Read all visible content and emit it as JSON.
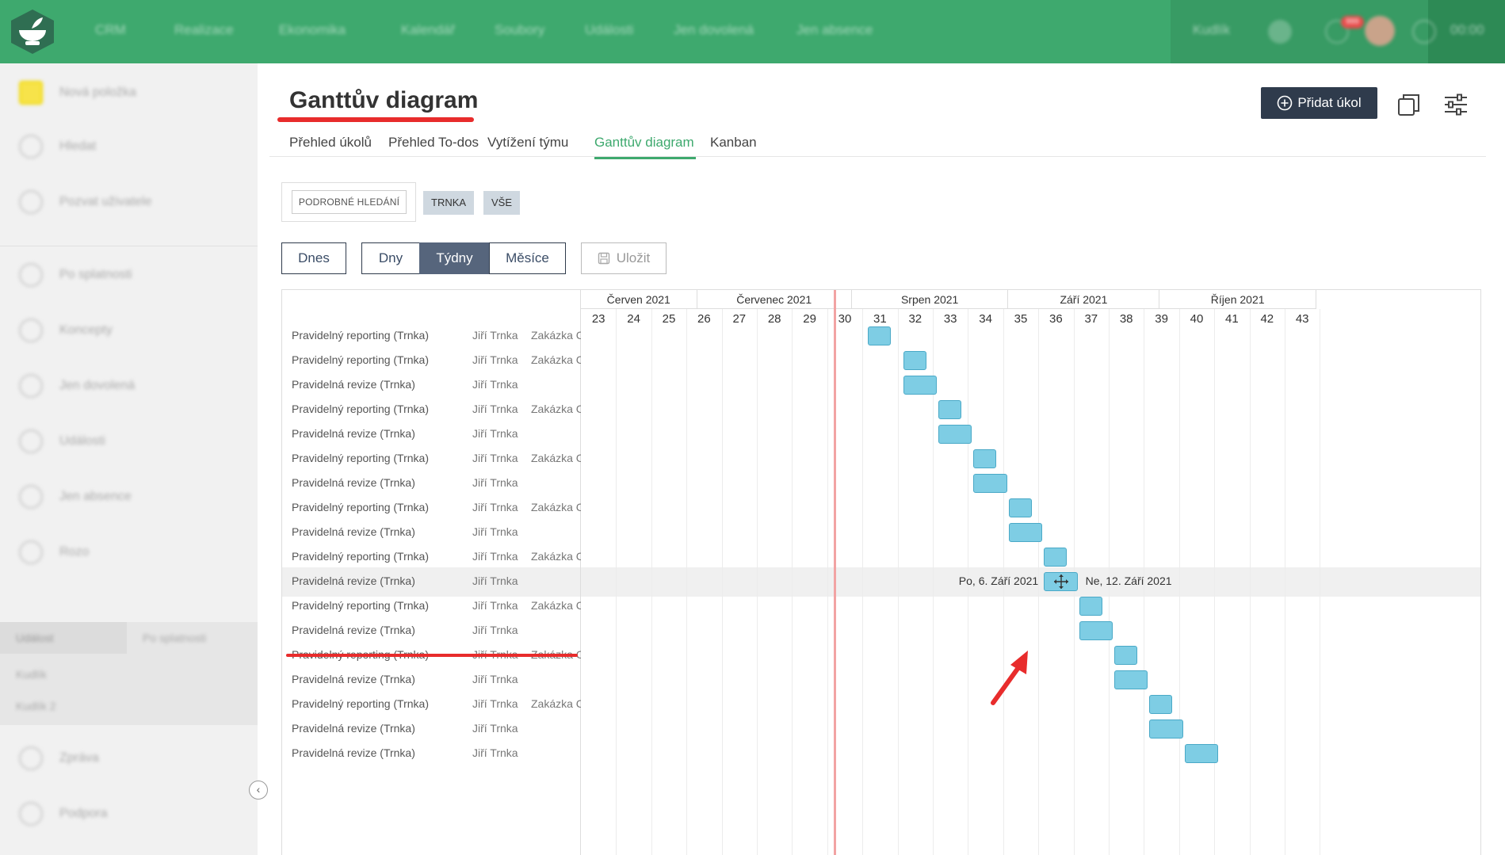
{
  "topbar": {
    "nav": [
      "CRM",
      "Realizace",
      "Ekonomika",
      "Kalendář",
      "Soubory",
      "Události",
      "Jen dovolená",
      "Jen absence"
    ],
    "user": "Kudlík",
    "badge": "999",
    "time": "00:00",
    "accent": "#3ea96e"
  },
  "sidebar": {
    "items": [
      "Nová položka",
      "Hledat",
      "Pozvat uživatele",
      "Po splatnosti",
      "Koncepty",
      "Jen dovolená",
      "Události",
      "Jen absence",
      "Rozo"
    ],
    "tabs": [
      "Událost",
      "Po splatnosti"
    ],
    "list": [
      "Kudlík",
      "Kudlík 2"
    ],
    "bottom": [
      "Zpráva",
      "Podpora"
    ]
  },
  "header": {
    "title": "Ganttův diagram",
    "add_button": "Přidat úkol"
  },
  "tabs": [
    "Přehled úkolů",
    "Přehled To-dos",
    "Vytížení týmu",
    "Ganttův diagram",
    "Kanban"
  ],
  "filters": {
    "advanced": "PODROBNÉ HLEDÁNÍ",
    "tags": [
      "TRNKA",
      "VŠE"
    ]
  },
  "view": {
    "today": "Dnes",
    "modes": [
      "Dny",
      "Týdny",
      "Měsíce"
    ],
    "active_mode": "Týdny",
    "save": "Uložit"
  },
  "gantt": {
    "months": [
      "Červen 2021",
      "Červenec 2021",
      "Srpen 2021",
      "Září 2021",
      "Říjen 2021"
    ],
    "weeks": [
      "23",
      "24",
      "25",
      "26",
      "27",
      "28",
      "29",
      "30",
      "31",
      "32",
      "33",
      "34",
      "35",
      "36",
      "37",
      "38",
      "39",
      "40",
      "41",
      "42",
      "43"
    ],
    "rows": [
      {
        "name": "Pravidelný reporting (Trnka)",
        "user": "Jiří Trnka",
        "project": "Zakázka C"
      },
      {
        "name": "Pravidelný reporting (Trnka)",
        "user": "Jiří Trnka",
        "project": "Zakázka C"
      },
      {
        "name": "Pravidelná revize (Trnka)",
        "user": "Jiří Trnka",
        "project": ""
      },
      {
        "name": "Pravidelný reporting (Trnka)",
        "user": "Jiří Trnka",
        "project": "Zakázka C"
      },
      {
        "name": "Pravidelná revize (Trnka)",
        "user": "Jiří Trnka",
        "project": ""
      },
      {
        "name": "Pravidelný reporting (Trnka)",
        "user": "Jiří Trnka",
        "project": "Zakázka C"
      },
      {
        "name": "Pravidelná revize (Trnka)",
        "user": "Jiří Trnka",
        "project": ""
      },
      {
        "name": "Pravidelný reporting (Trnka)",
        "user": "Jiří Trnka",
        "project": "Zakázka C"
      },
      {
        "name": "Pravidelná revize (Trnka)",
        "user": "Jiří Trnka",
        "project": ""
      },
      {
        "name": "Pravidelný reporting (Trnka)",
        "user": "Jiří Trnka",
        "project": "Zakázka C"
      },
      {
        "name": "Pravidelná revize (Trnka)",
        "user": "Jiří Trnka",
        "project": ""
      },
      {
        "name": "Pravidelný reporting (Trnka)",
        "user": "Jiří Trnka",
        "project": "Zakázka C"
      },
      {
        "name": "Pravidelná revize (Trnka)",
        "user": "Jiří Trnka",
        "project": ""
      },
      {
        "name": "Pravidelný reporting (Trnka)",
        "user": "Jiří Trnka",
        "project": "Zakázka C"
      },
      {
        "name": "Pravidelná revize (Trnka)",
        "user": "Jiří Trnka",
        "project": ""
      },
      {
        "name": "Pravidelný reporting (Trnka)",
        "user": "Jiří Trnka",
        "project": "Zakázka C"
      },
      {
        "name": "Pravidelná revize (Trnka)",
        "user": "Jiří Trnka",
        "project": ""
      },
      {
        "name": "Pravidelná revize (Trnka)",
        "user": "Jiří Trnka",
        "project": ""
      }
    ],
    "bars": [
      {
        "start_week": 31.0,
        "weeks": 0.7
      },
      {
        "start_week": 32.0,
        "weeks": 0.7
      },
      {
        "start_week": 32.0,
        "weeks": 1.0
      },
      {
        "start_week": 33.0,
        "weeks": 0.7
      },
      {
        "start_week": 33.0,
        "weeks": 1.0
      },
      {
        "start_week": 34.0,
        "weeks": 0.7
      },
      {
        "start_week": 34.0,
        "weeks": 1.0
      },
      {
        "start_week": 35.0,
        "weeks": 0.7
      },
      {
        "start_week": 35.0,
        "weeks": 1.0
      },
      {
        "start_week": 36.0,
        "weeks": 0.7
      },
      {
        "start_week": 36.0,
        "weeks": 1.0
      },
      {
        "start_week": 37.0,
        "weeks": 0.7
      },
      {
        "start_week": 37.0,
        "weeks": 1.0
      },
      {
        "start_week": 38.0,
        "weeks": 0.7
      },
      {
        "start_week": 38.0,
        "weeks": 1.0
      },
      {
        "start_week": 39.0,
        "weeks": 0.7
      },
      {
        "start_week": 39.0,
        "weeks": 1.0
      },
      {
        "start_week": 40.0,
        "weeks": 1.0
      }
    ],
    "today_week": 30.05,
    "drag": {
      "start_label": "Po, 6. Září 2021",
      "end_label": "Ne, 12. Září 2021",
      "row": 10
    }
  }
}
